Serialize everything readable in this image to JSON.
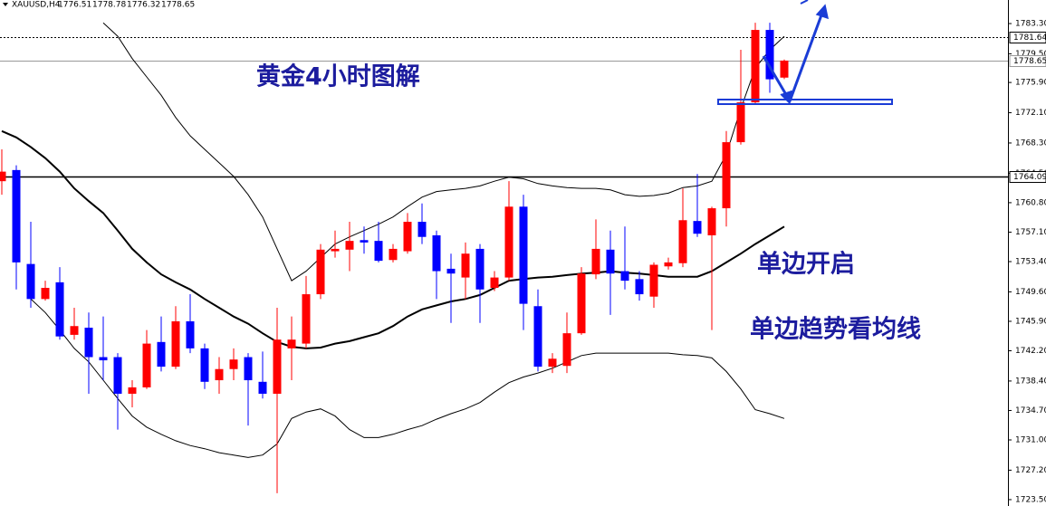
{
  "chart_data": {
    "type": "candlestick",
    "symbol": "XAUUSD,H4",
    "annotations": [
      "黄金4小时图解",
      "单边开启",
      "单边趋势看均线"
    ],
    "up_color": "#ff0000",
    "down_color": "#0000ff",
    "open": [
      1763.5,
      1764.9,
      1753.1,
      1748.7,
      1750.8,
      1744.2,
      1745.1,
      1741.4,
      1741.4,
      1736.8,
      1737.6,
      1743.3,
      1740.2,
      1745.9,
      1742.5,
      1738.5,
      1739.9,
      1741.4,
      1738.3,
      1736.8,
      1742.5,
      1743.1,
      1749.3,
      1754.7,
      1754.9,
      1756.1,
      1756.0,
      1753.6,
      1754.7,
      1758.4,
      1756.7,
      1752.5,
      1751.4,
      1755.0,
      1750.1,
      1751.4,
      1760.3,
      1747.8,
      1740.2,
      1740.3,
      1744.4,
      1751.8,
      1754.9,
      1752.2,
      1751.2,
      1749.0,
      1752.8,
      1753.2,
      1758.5,
      1756.7,
      1760.1,
      1768.4,
      1773.4,
      1782.5,
      1776.51
    ],
    "high": [
      1767.5,
      1765.5,
      1758.4,
      1751.0,
      1752.7,
      1747.6,
      1747.0,
      1746.5,
      1741.9,
      1738.5,
      1744.8,
      1746.5,
      1747.8,
      1749.3,
      1743.1,
      1741.4,
      1742.5,
      1741.9,
      1742.1,
      1747.6,
      1746.5,
      1751.6,
      1755.6,
      1757.3,
      1758.4,
      1757.8,
      1758.4,
      1755.6,
      1759.5,
      1760.7,
      1757.3,
      1754.4,
      1755.8,
      1755.6,
      1752.2,
      1763.5,
      1761.8,
      1749.9,
      1741.9,
      1747.0,
      1752.7,
      1758.7,
      1757.3,
      1757.8,
      1752.2,
      1753.3,
      1753.9,
      1762.6,
      1764.4,
      1760.3,
      1769.8,
      1780.0,
      1783.4,
      1783.4,
      1778.78
    ],
    "low": [
      1761.8,
      1749.9,
      1747.6,
      1748.5,
      1743.6,
      1743.6,
      1736.8,
      1738.5,
      1732.3,
      1735.1,
      1737.4,
      1739.6,
      1739.9,
      1741.9,
      1737.4,
      1736.8,
      1738.5,
      1732.8,
      1736.2,
      1724.3,
      1738.5,
      1742.5,
      1748.7,
      1753.9,
      1752.2,
      1754.4,
      1753.3,
      1753.3,
      1754.4,
      1755.6,
      1748.7,
      1745.7,
      1748.7,
      1745.7,
      1749.7,
      1751.0,
      1744.8,
      1739.6,
      1739.4,
      1739.4,
      1744.2,
      1751.2,
      1746.7,
      1749.9,
      1748.5,
      1747.6,
      1752.4,
      1752.7,
      1756.5,
      1744.8,
      1757.8,
      1768.1,
      1773.2,
      1774.6,
      1776.32
    ],
    "close": [
      1764.7,
      1753.3,
      1748.7,
      1750.1,
      1744.0,
      1745.3,
      1741.4,
      1741.0,
      1736.8,
      1737.6,
      1743.1,
      1740.2,
      1745.9,
      1742.5,
      1738.3,
      1739.9,
      1741.1,
      1738.5,
      1736.8,
      1743.6,
      1743.6,
      1749.3,
      1754.9,
      1755.0,
      1756.0,
      1755.8,
      1753.5,
      1755.0,
      1758.4,
      1756.5,
      1752.2,
      1751.9,
      1754.4,
      1749.9,
      1751.4,
      1760.3,
      1748.1,
      1740.2,
      1741.2,
      1744.4,
      1751.9,
      1755.0,
      1751.9,
      1751.0,
      1749.3,
      1753.0,
      1753.3,
      1758.6,
      1756.9,
      1760.1,
      1768.4,
      1773.4,
      1782.5,
      1776.3,
      1778.65
    ],
    "lines": [
      {
        "color": "#000000",
        "width": 2,
        "values": [
          1769.8,
          1769.0,
          1767.8,
          1766.4,
          1764.7,
          1762.6,
          1761.0,
          1759.5,
          1757.3,
          1755.0,
          1753.3,
          1751.8,
          1750.8,
          1749.9,
          1748.7,
          1747.6,
          1746.5,
          1745.6,
          1744.4,
          1743.3,
          1742.7,
          1742.5,
          1742.6,
          1743.1,
          1743.4,
          1743.9,
          1744.4,
          1745.3,
          1746.5,
          1747.4,
          1747.9,
          1748.4,
          1748.7,
          1749.2,
          1750.1,
          1751.0,
          1751.2,
          1751.4,
          1751.5,
          1751.7,
          1751.9,
          1752.0,
          1752.2,
          1752.0,
          1751.9,
          1751.7,
          1751.5,
          1751.5,
          1751.5,
          1752.2,
          1753.3,
          1754.4,
          1755.6,
          1756.7,
          1757.8
        ]
      },
      {
        "color": "#000000",
        "width": 1,
        "values": [
          null,
          null,
          null,
          null,
          null,
          null,
          null,
          1783.4,
          1781.7,
          1778.9,
          1776.6,
          1774.3,
          1771.5,
          1769.2,
          1767.5,
          1765.8,
          1764.1,
          1761.8,
          1759.0,
          1755.0,
          1751.0,
          1752.2,
          1753.9,
          1755.6,
          1756.5,
          1757.3,
          1758.1,
          1759.0,
          1760.3,
          1761.5,
          1762.2,
          1762.4,
          1762.6,
          1762.9,
          1763.5,
          1764.0,
          1763.8,
          1763.2,
          1762.9,
          1762.7,
          1762.6,
          1762.6,
          1762.4,
          1761.8,
          1761.6,
          1761.7,
          1762.0,
          1762.7,
          1762.9,
          1763.5,
          1766.9,
          1772.6,
          1777.7,
          1780.0,
          1781.7
        ]
      },
      {
        "color": "#000000",
        "width": 1,
        "values": [
          null,
          null,
          1748.7,
          1747.0,
          1744.8,
          1742.5,
          1740.8,
          1738.5,
          1736.2,
          1734.0,
          1732.6,
          1731.7,
          1730.9,
          1730.3,
          1729.9,
          1729.4,
          1729.1,
          1728.8,
          1729.1,
          1730.5,
          1733.7,
          1734.5,
          1734.9,
          1734.0,
          1732.3,
          1731.3,
          1731.3,
          1731.7,
          1732.3,
          1732.8,
          1733.6,
          1734.3,
          1734.9,
          1735.7,
          1737.0,
          1738.2,
          1738.9,
          1739.4,
          1740.0,
          1740.8,
          1741.6,
          1741.9,
          1741.9,
          1741.9,
          1741.9,
          1741.9,
          1741.9,
          1741.7,
          1741.6,
          1741.3,
          1739.6,
          1737.4,
          1734.8,
          1734.3,
          1733.7
        ]
      }
    ],
    "hlines": [
      {
        "value": 1781.64,
        "color": "#000000",
        "style": "dotted"
      },
      {
        "value": 1778.65,
        "color": "#9a9a9a",
        "style": "solid"
      },
      {
        "value": 1764.09,
        "color": "#000000",
        "style": "solid"
      }
    ],
    "ylim": [
      1722.7,
      1786.26
    ],
    "yticks": [
      {
        "value": 1783.3,
        "label": "1783.30"
      },
      {
        "value": 1779.5,
        "label": "1779.50"
      },
      {
        "value": 1775.9,
        "label": "1775.90"
      },
      {
        "value": 1772.1,
        "label": "1772.10"
      },
      {
        "value": 1768.3,
        "label": "1768.30"
      },
      {
        "value": 1764.5,
        "label": "1764.50"
      },
      {
        "value": 1760.8,
        "label": "1760.80"
      },
      {
        "value": 1757.1,
        "label": "1757.10"
      },
      {
        "value": 1753.4,
        "label": "1753.40"
      },
      {
        "value": 1749.6,
        "label": "1749.60"
      },
      {
        "value": 1745.9,
        "label": "1745.90"
      },
      {
        "value": 1742.2,
        "label": "1742.20"
      },
      {
        "value": 1738.4,
        "label": "1738.40"
      },
      {
        "value": 1734.7,
        "label": "1734.70"
      },
      {
        "value": 1731.0,
        "label": "1731.00"
      },
      {
        "value": 1727.2,
        "label": "1727.20"
      },
      {
        "value": 1723.5,
        "label": "1723.50"
      }
    ]
  }
}
